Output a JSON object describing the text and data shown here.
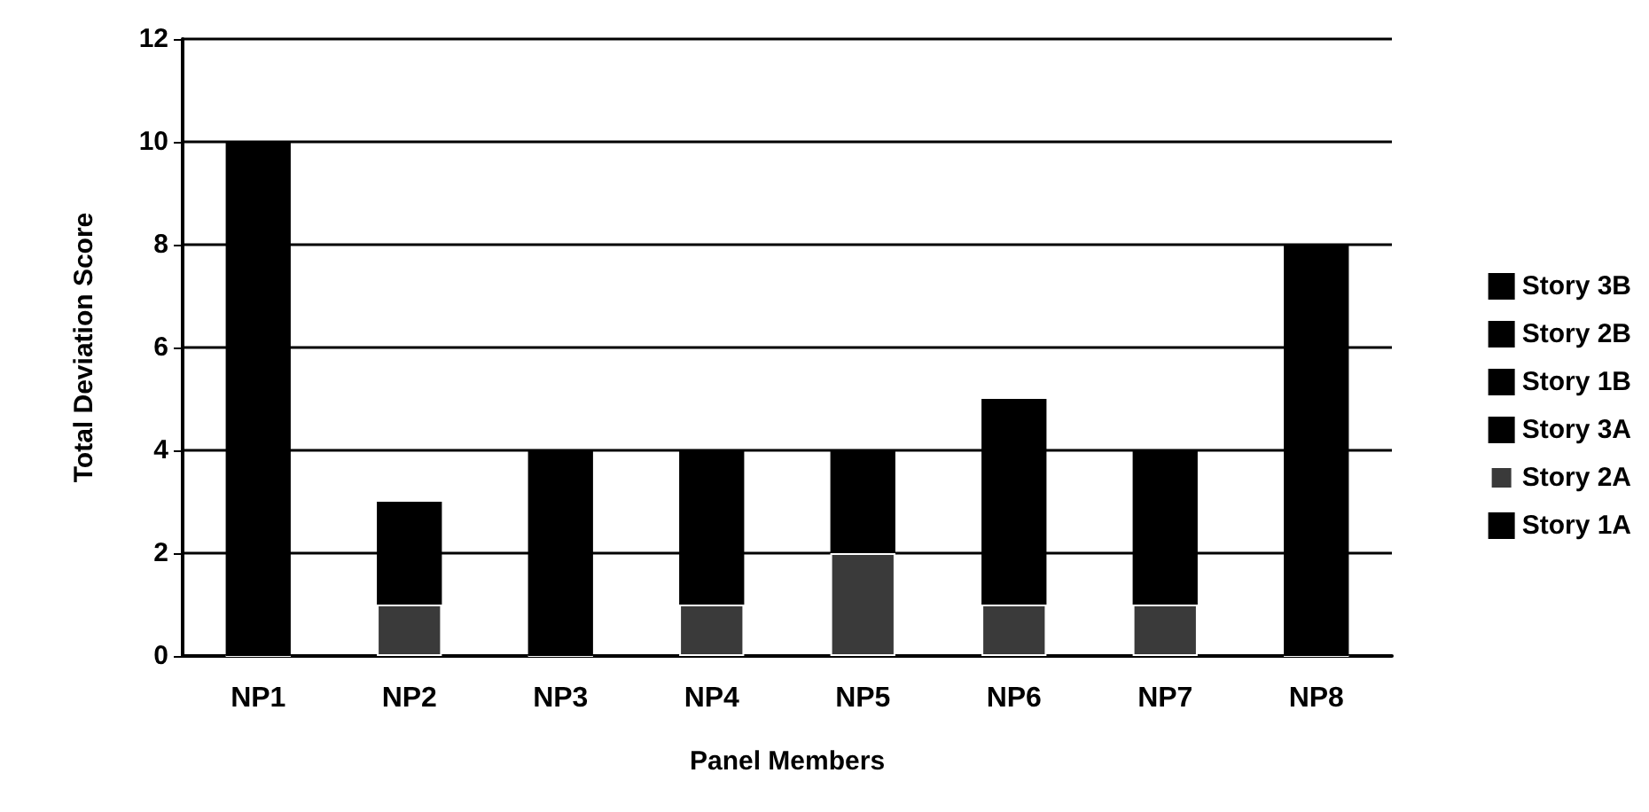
{
  "chart_data": {
    "type": "bar",
    "stacked": true,
    "xlabel": "Panel Members",
    "ylabel": "Total Deviation Score",
    "categories": [
      "NP1",
      "NP2",
      "NP3",
      "NP4",
      "NP5",
      "NP6",
      "NP7",
      "NP8"
    ],
    "series": [
      {
        "name": "Story 1A",
        "color": "#000000",
        "values": [
          null,
          null,
          null,
          null,
          null,
          null,
          null,
          null
        ]
      },
      {
        "name": "Story 2A",
        "color": "#3a3a3a",
        "values": [
          0,
          1,
          0,
          1,
          2,
          1,
          1,
          0
        ]
      },
      {
        "name": "Story 3A",
        "color": "#000000",
        "values": [
          null,
          null,
          null,
          null,
          null,
          null,
          null,
          null
        ]
      },
      {
        "name": "Story 1B",
        "color": "#000000",
        "values": [
          null,
          null,
          null,
          null,
          null,
          null,
          null,
          null
        ]
      },
      {
        "name": "Story 2B",
        "color": "#000000",
        "values": [
          null,
          null,
          null,
          null,
          null,
          null,
          null,
          null
        ]
      },
      {
        "name": "Story 3B",
        "color": "#000000",
        "values": [
          10,
          2,
          4,
          3,
          2,
          4,
          3,
          8
        ]
      }
    ],
    "ylim": [
      0,
      12
    ],
    "yticks": [
      0,
      2,
      4,
      6,
      8,
      10,
      12
    ],
    "grid": "y",
    "legend": "right"
  }
}
